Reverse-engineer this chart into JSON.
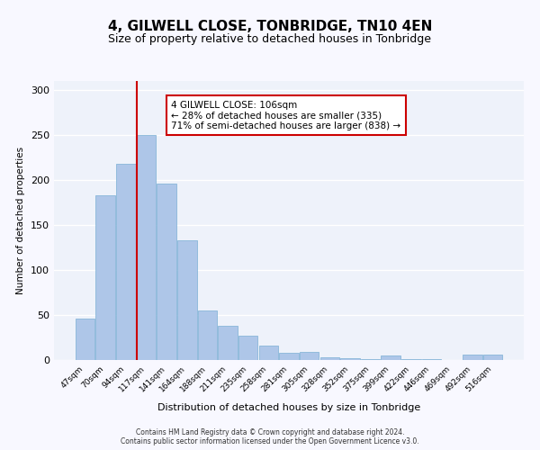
{
  "title": "4, GILWELL CLOSE, TONBRIDGE, TN10 4EN",
  "subtitle": "Size of property relative to detached houses in Tonbridge",
  "xlabel": "Distribution of detached houses by size in Tonbridge",
  "ylabel": "Number of detached properties",
  "categories": [
    "47sqm",
    "70sqm",
    "94sqm",
    "117sqm",
    "141sqm",
    "164sqm",
    "188sqm",
    "211sqm",
    "235sqm",
    "258sqm",
    "281sqm",
    "305sqm",
    "328sqm",
    "352sqm",
    "375sqm",
    "399sqm",
    "422sqm",
    "446sqm",
    "469sqm",
    "492sqm",
    "516sqm"
  ],
  "values": [
    46,
    183,
    218,
    250,
    196,
    133,
    55,
    38,
    27,
    16,
    8,
    9,
    3,
    2,
    1,
    5,
    1,
    1,
    0,
    6,
    6
  ],
  "bar_color": "#aec6e8",
  "bar_edge_color": "#7aafd4",
  "bg_color": "#eef2fa",
  "grid_color": "#ffffff",
  "property_line_x": 3,
  "annotation_title": "4 GILWELL CLOSE: 106sqm",
  "annotation_line1": "← 28% of detached houses are smaller (335)",
  "annotation_line2": "71% of semi-detached houses are larger (838) →",
  "annotation_box_color": "#cc0000",
  "footer_line1": "Contains HM Land Registry data © Crown copyright and database right 2024.",
  "footer_line2": "Contains public sector information licensed under the Open Government Licence v3.0.",
  "ylim": [
    0,
    310
  ],
  "yticks": [
    0,
    50,
    100,
    150,
    200,
    250,
    300
  ]
}
